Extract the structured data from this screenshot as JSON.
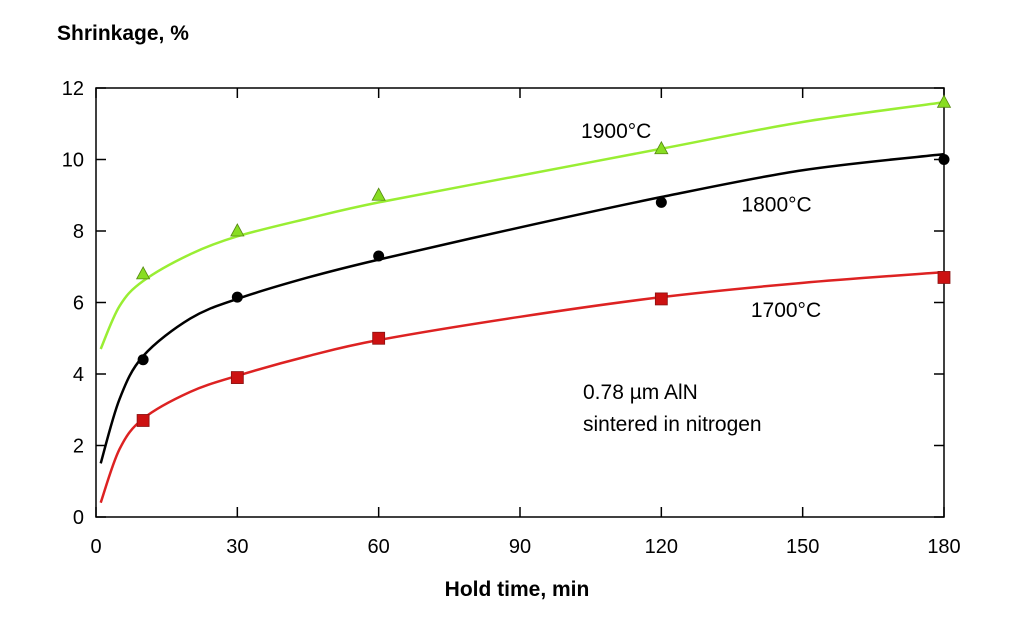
{
  "chart_data": {
    "type": "line",
    "title": "",
    "xlabel": "Hold time, min",
    "ylabel": "Shrinkage, %",
    "xlim": [
      0,
      180
    ],
    "ylim": [
      0,
      12
    ],
    "xticks": [
      0,
      30,
      60,
      90,
      120,
      150,
      180
    ],
    "yticks": [
      0,
      2,
      4,
      6,
      8,
      10,
      12
    ],
    "grid": false,
    "series": [
      {
        "name": "1900°C",
        "color": "#99ee33",
        "marker": "triangle",
        "marker_color": "#88dd22",
        "points": [
          [
            10,
            6.8
          ],
          [
            30,
            8.0
          ],
          [
            60,
            9.0
          ],
          [
            120,
            10.3
          ],
          [
            180,
            11.6
          ]
        ],
        "fit": [
          [
            1,
            4.7
          ],
          [
            5,
            5.9
          ],
          [
            10,
            6.6
          ],
          [
            20,
            7.35
          ],
          [
            30,
            7.85
          ],
          [
            45,
            8.35
          ],
          [
            60,
            8.8
          ],
          [
            90,
            9.55
          ],
          [
            120,
            10.3
          ],
          [
            150,
            11.05
          ],
          [
            180,
            11.6
          ]
        ]
      },
      {
        "name": "1800°C",
        "color": "#000000",
        "marker": "circle",
        "marker_color": "#000000",
        "points": [
          [
            10,
            4.4
          ],
          [
            30,
            6.15
          ],
          [
            60,
            7.3
          ],
          [
            120,
            8.8
          ],
          [
            180,
            10.0
          ]
        ],
        "fit": [
          [
            1,
            1.5
          ],
          [
            5,
            3.3
          ],
          [
            10,
            4.5
          ],
          [
            20,
            5.55
          ],
          [
            30,
            6.1
          ],
          [
            45,
            6.7
          ],
          [
            60,
            7.2
          ],
          [
            90,
            8.1
          ],
          [
            120,
            8.95
          ],
          [
            150,
            9.7
          ],
          [
            180,
            10.15
          ]
        ]
      },
      {
        "name": "1700°C",
        "color": "#dd2222",
        "marker": "square",
        "marker_color": "#cc1111",
        "points": [
          [
            10,
            2.7
          ],
          [
            30,
            3.9
          ],
          [
            60,
            5.0
          ],
          [
            120,
            6.1
          ],
          [
            180,
            6.7
          ]
        ],
        "fit": [
          [
            1,
            0.4
          ],
          [
            5,
            1.9
          ],
          [
            10,
            2.75
          ],
          [
            20,
            3.5
          ],
          [
            30,
            3.95
          ],
          [
            45,
            4.5
          ],
          [
            60,
            4.95
          ],
          [
            90,
            5.6
          ],
          [
            120,
            6.15
          ],
          [
            150,
            6.55
          ],
          [
            180,
            6.85
          ]
        ]
      }
    ],
    "annotations": [
      "0.78 µm AlN",
      "sintered in nitrogen"
    ]
  }
}
